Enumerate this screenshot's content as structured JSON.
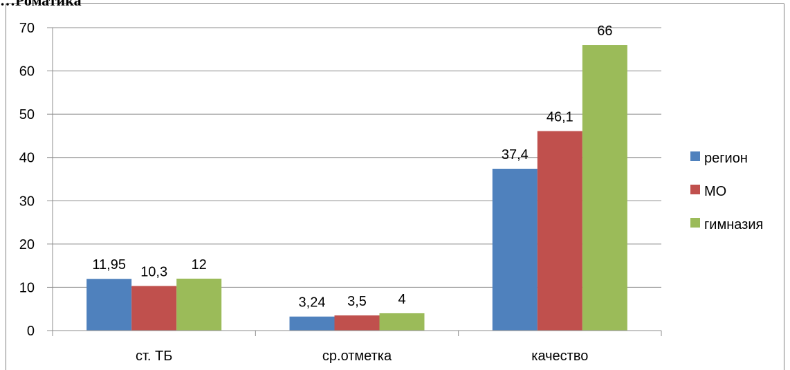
{
  "header": {
    "partial_text": "…Роматика"
  },
  "chart_data": {
    "type": "bar",
    "categories": [
      "ст. ТБ",
      "ср.отметка",
      "качество"
    ],
    "series": [
      {
        "name": "регион",
        "values": [
          11.95,
          3.24,
          37.4
        ],
        "labels": [
          "11,95",
          "3,24",
          "37,4"
        ],
        "color": "#4f81bd"
      },
      {
        "name": "МО",
        "values": [
          10.3,
          3.5,
          46.1
        ],
        "labels": [
          "10,3",
          "3,5",
          "46,1"
        ],
        "color": "#c0504d"
      },
      {
        "name": "гимназия",
        "values": [
          12,
          4,
          66
        ],
        "labels": [
          "12",
          "4",
          "66"
        ],
        "color": "#9bbb59"
      }
    ],
    "yticks": [
      "0",
      "10",
      "20",
      "30",
      "40",
      "50",
      "60",
      "70"
    ],
    "ylim": [
      0,
      70
    ],
    "grid": true,
    "legend_position": "right"
  }
}
